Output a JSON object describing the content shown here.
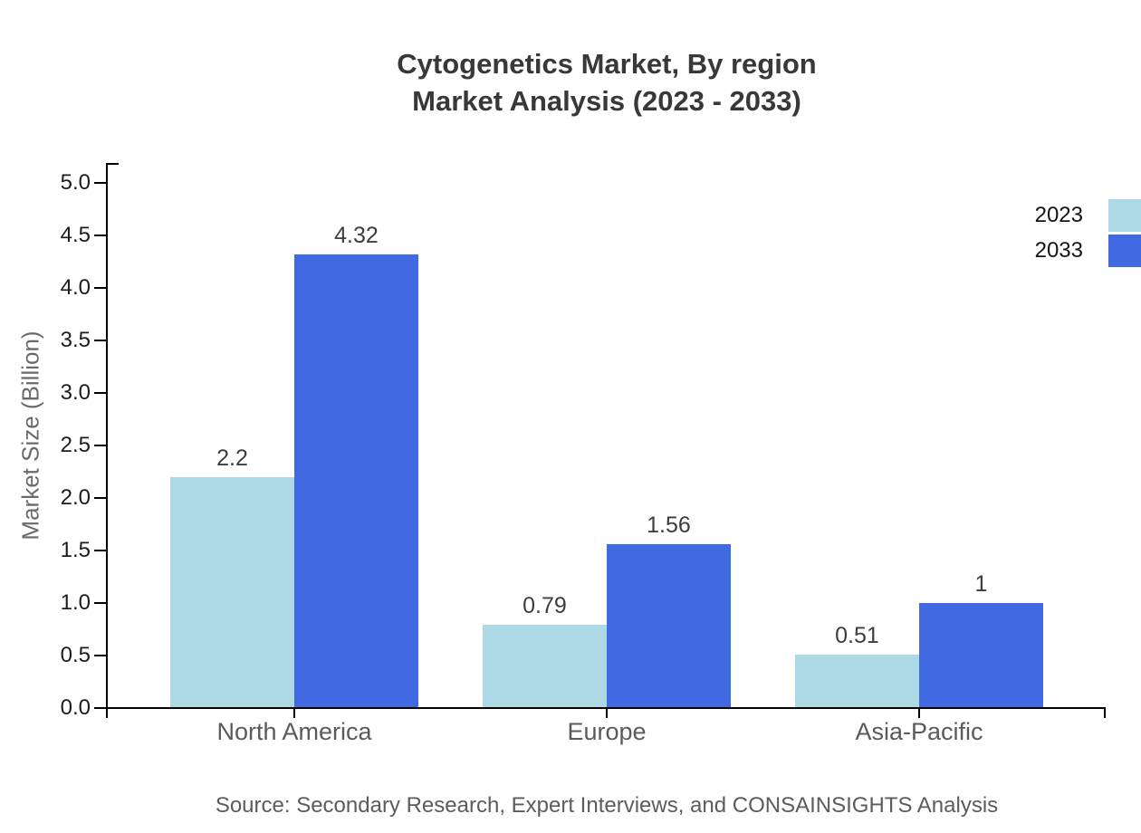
{
  "title": {
    "line1": "Cytogenetics Market, By region",
    "line2": "Market Analysis (2023 - 2033)"
  },
  "source_text": "Source: Secondary Research, Expert Interviews, and CONSAINSIGHTS Analysis",
  "legend": {
    "entries": [
      {
        "label": "2023",
        "color": "#ADD8E6"
      },
      {
        "label": "2033",
        "color": "#4169E1"
      }
    ]
  },
  "chart_data": {
    "type": "bar",
    "title": "Cytogenetics Market, By region — Market Analysis (2023 - 2033)",
    "categories": [
      "North America",
      "Europe",
      "Asia-Pacific"
    ],
    "series": [
      {
        "name": "2023",
        "color": "#ADD8E6",
        "values": [
          2.2,
          0.79,
          0.51
        ],
        "labels": [
          "2.2",
          "0.79",
          "0.51"
        ]
      },
      {
        "name": "2033",
        "color": "#4169E1",
        "values": [
          4.32,
          1.56,
          1
        ],
        "labels": [
          "4.32",
          "1.56",
          "1"
        ]
      }
    ],
    "xlabel": "",
    "ylabel": "Market Size (Billion)",
    "ylim": [
      0,
      5
    ],
    "yticks": [
      "0.0",
      "0.5",
      "1.0",
      "1.5",
      "2.0",
      "2.5",
      "3.0",
      "3.5",
      "4.0",
      "4.5",
      "5.0"
    ],
    "grid": false,
    "legend_position": "upper right",
    "bar_value_labels": true
  }
}
